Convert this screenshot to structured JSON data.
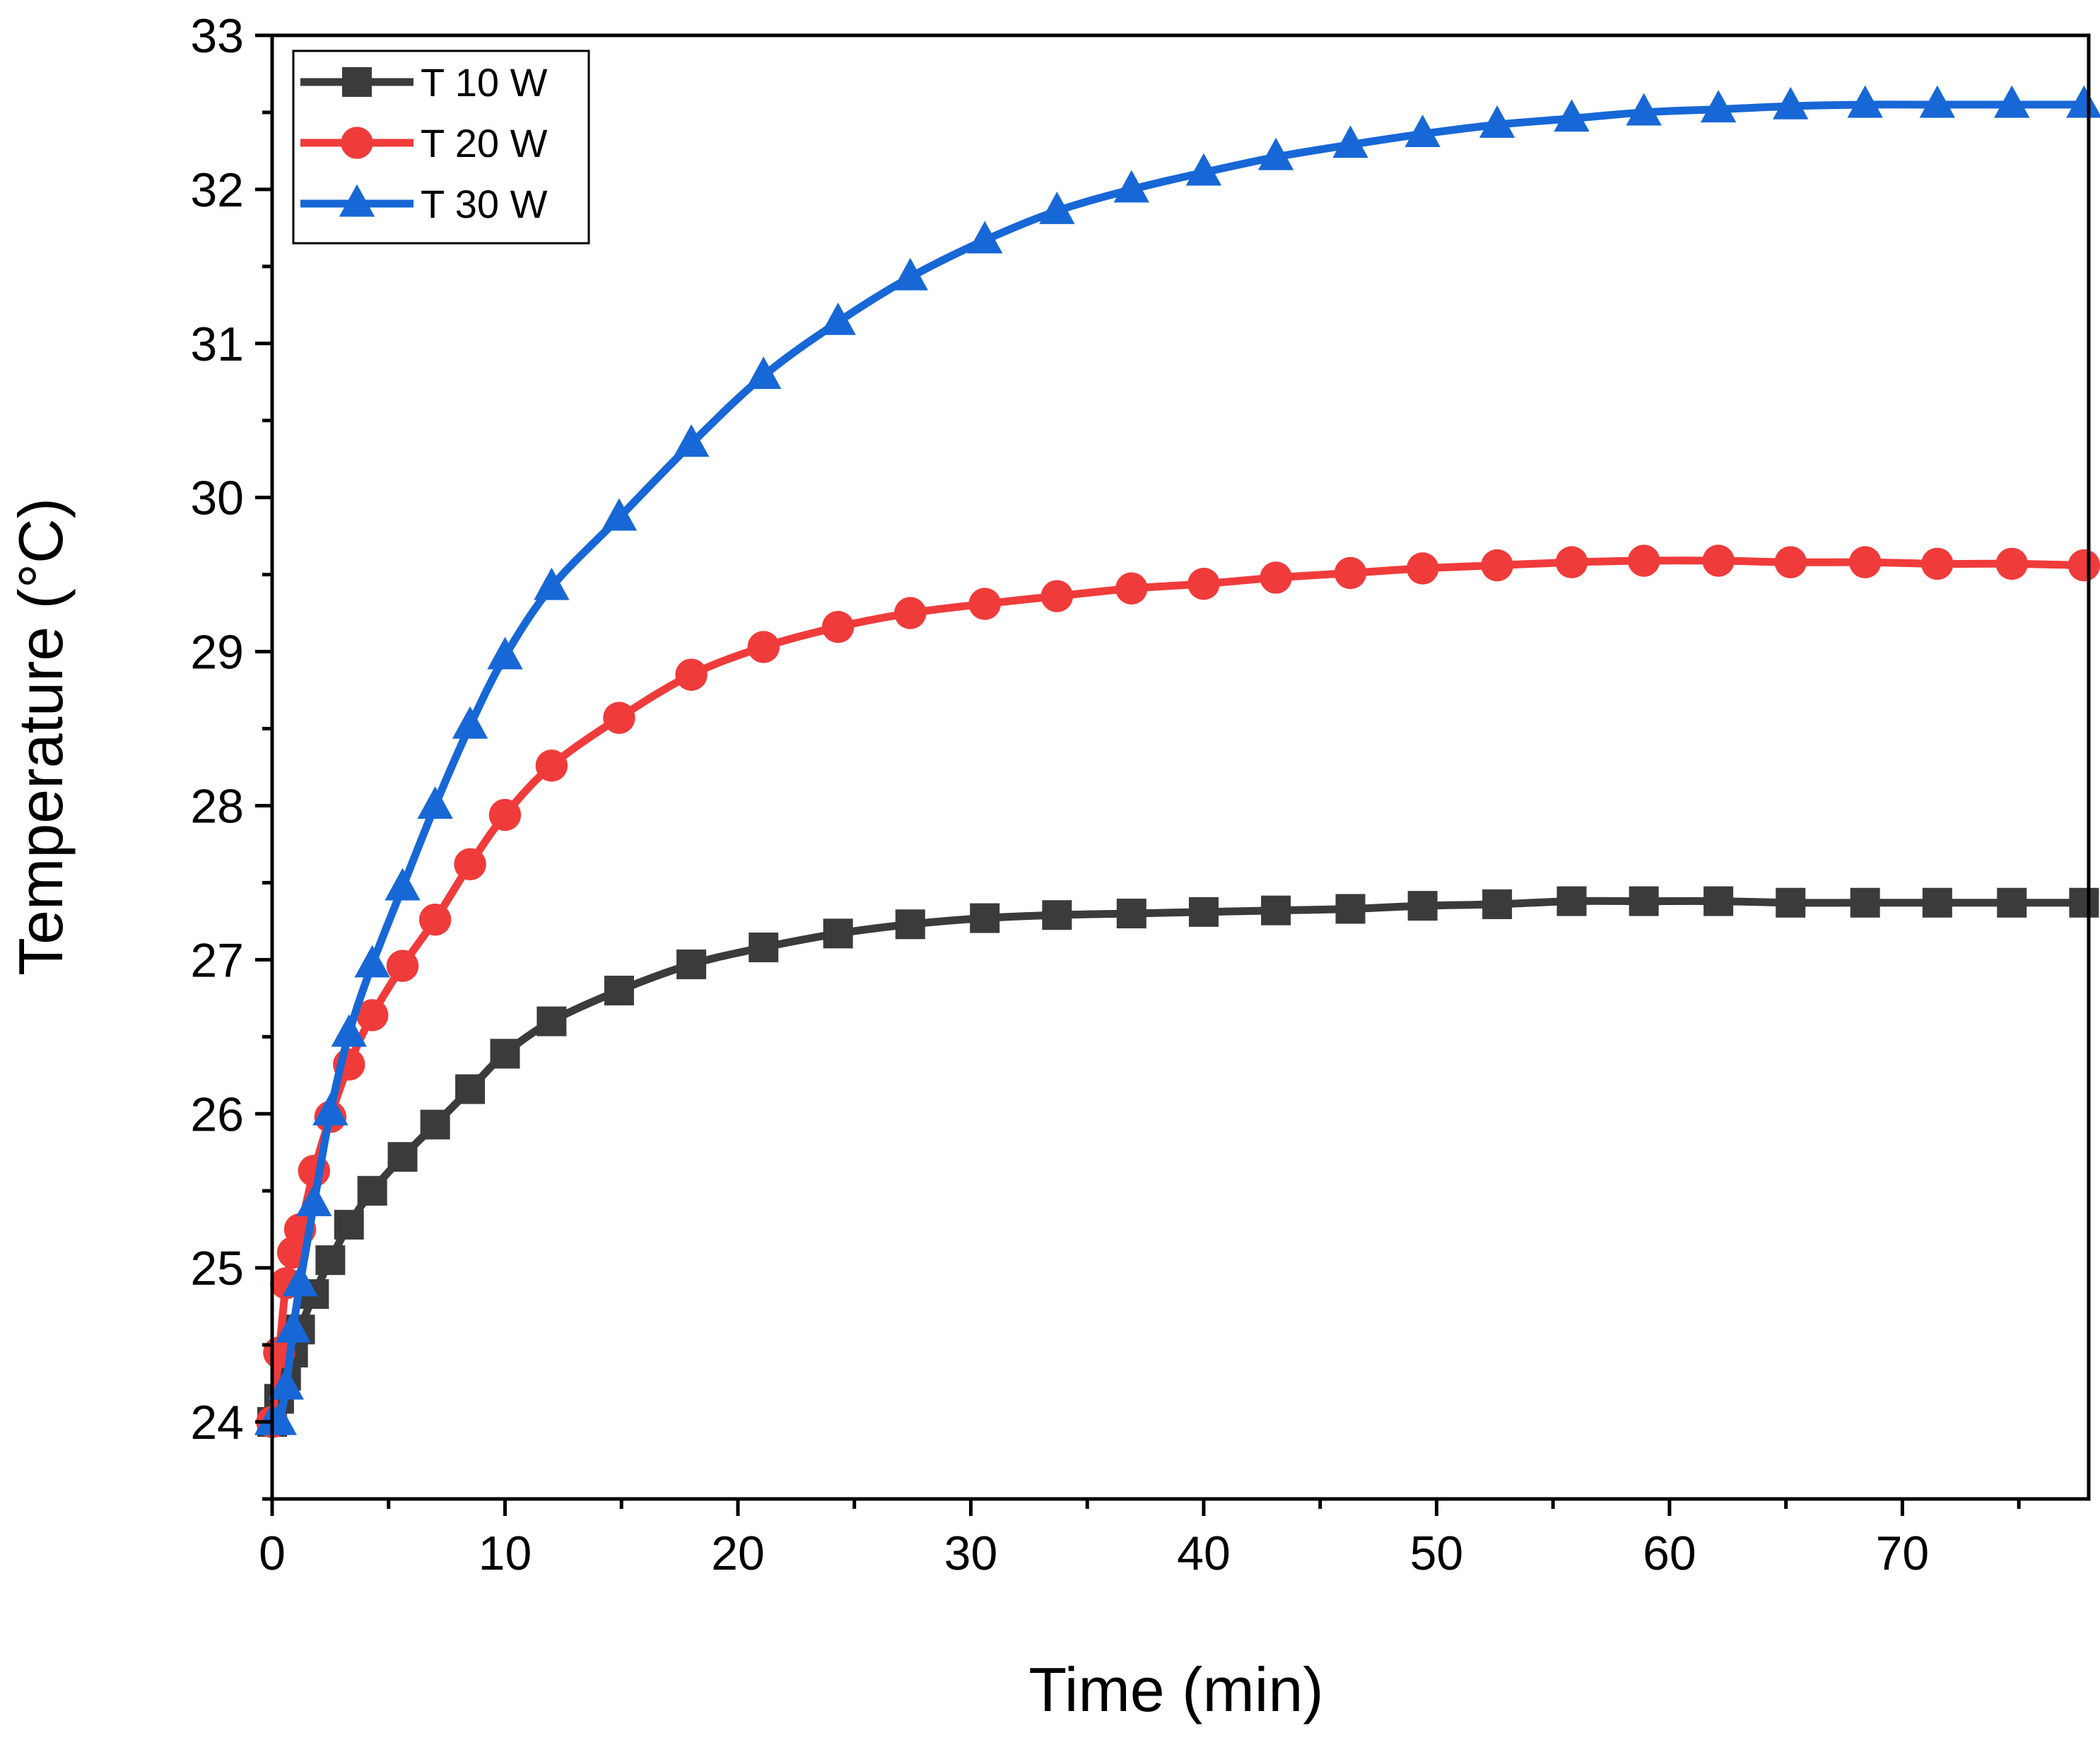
{
  "chart_data": {
    "type": "line",
    "title": "",
    "xlabel": "Time (min)",
    "ylabel": "Temperature (°C)",
    "xlim": [
      0,
      78
    ],
    "ylim": [
      23.5,
      33
    ],
    "x_ticks": [
      0,
      10,
      20,
      30,
      40,
      50,
      60,
      70
    ],
    "x_minor_ticks": [
      5,
      15,
      25,
      35,
      45,
      55,
      65,
      75
    ],
    "y_ticks": [
      24,
      25,
      26,
      27,
      28,
      29,
      30,
      31,
      32,
      33
    ],
    "x_tick_labels": [
      "0",
      "10",
      "20",
      "30",
      "40",
      "50",
      "60",
      "70"
    ],
    "y_tick_labels": [
      "24",
      "25",
      "26",
      "27",
      "28",
      "29",
      "30",
      "31",
      "32",
      "33"
    ],
    "grid": false,
    "legend_position": "top-left",
    "x": [
      0,
      0.3,
      0.6,
      0.9,
      1.2,
      1.8,
      2.5,
      3.3,
      4.3,
      5.6,
      7.0,
      8.5,
      10.0,
      12.0,
      14.9,
      18.0,
      21.1,
      24.3,
      27.4,
      30.6,
      33.7,
      36.9,
      40.0,
      43.1,
      46.3,
      49.4,
      52.6,
      55.8,
      58.9,
      62.1,
      65.2,
      68.4,
      71.5,
      74.7,
      77.8
    ],
    "series": [
      {
        "name": "T 10 W",
        "color": "#3b3b3b",
        "marker": "square",
        "values": [
          24.0,
          24.15,
          24.3,
          24.45,
          24.6,
          24.83,
          25.05,
          25.28,
          25.5,
          25.72,
          25.93,
          26.16,
          26.39,
          26.6,
          26.8,
          26.97,
          27.08,
          27.17,
          27.23,
          27.27,
          27.29,
          27.3,
          27.31,
          27.32,
          27.33,
          27.35,
          27.36,
          27.38,
          27.38,
          27.38,
          27.37,
          27.37,
          27.37,
          27.37,
          27.37
        ]
      },
      {
        "name": "T 20 W",
        "color": "#f03b3b",
        "marker": "circle",
        "values": [
          24.0,
          24.45,
          24.9,
          25.1,
          25.25,
          25.63,
          25.98,
          26.32,
          26.64,
          26.96,
          27.26,
          27.62,
          27.94,
          28.26,
          28.57,
          28.85,
          29.03,
          29.16,
          29.25,
          29.31,
          29.36,
          29.41,
          29.44,
          29.48,
          29.51,
          29.54,
          29.56,
          29.58,
          29.59,
          29.59,
          29.58,
          29.58,
          29.57,
          29.57,
          29.56
        ]
      },
      {
        "name": "T 30 W",
        "color": "#1767d6",
        "marker": "triangle",
        "values": [
          24.0,
          24.0,
          24.23,
          24.6,
          24.9,
          25.42,
          26.01,
          26.52,
          26.97,
          27.47,
          28.0,
          28.52,
          28.97,
          29.42,
          29.87,
          30.35,
          30.79,
          31.14,
          31.43,
          31.67,
          31.86,
          32.0,
          32.11,
          32.21,
          32.29,
          32.36,
          32.42,
          32.46,
          32.5,
          32.52,
          32.54,
          32.55,
          32.55,
          32.55,
          32.55
        ]
      }
    ]
  }
}
